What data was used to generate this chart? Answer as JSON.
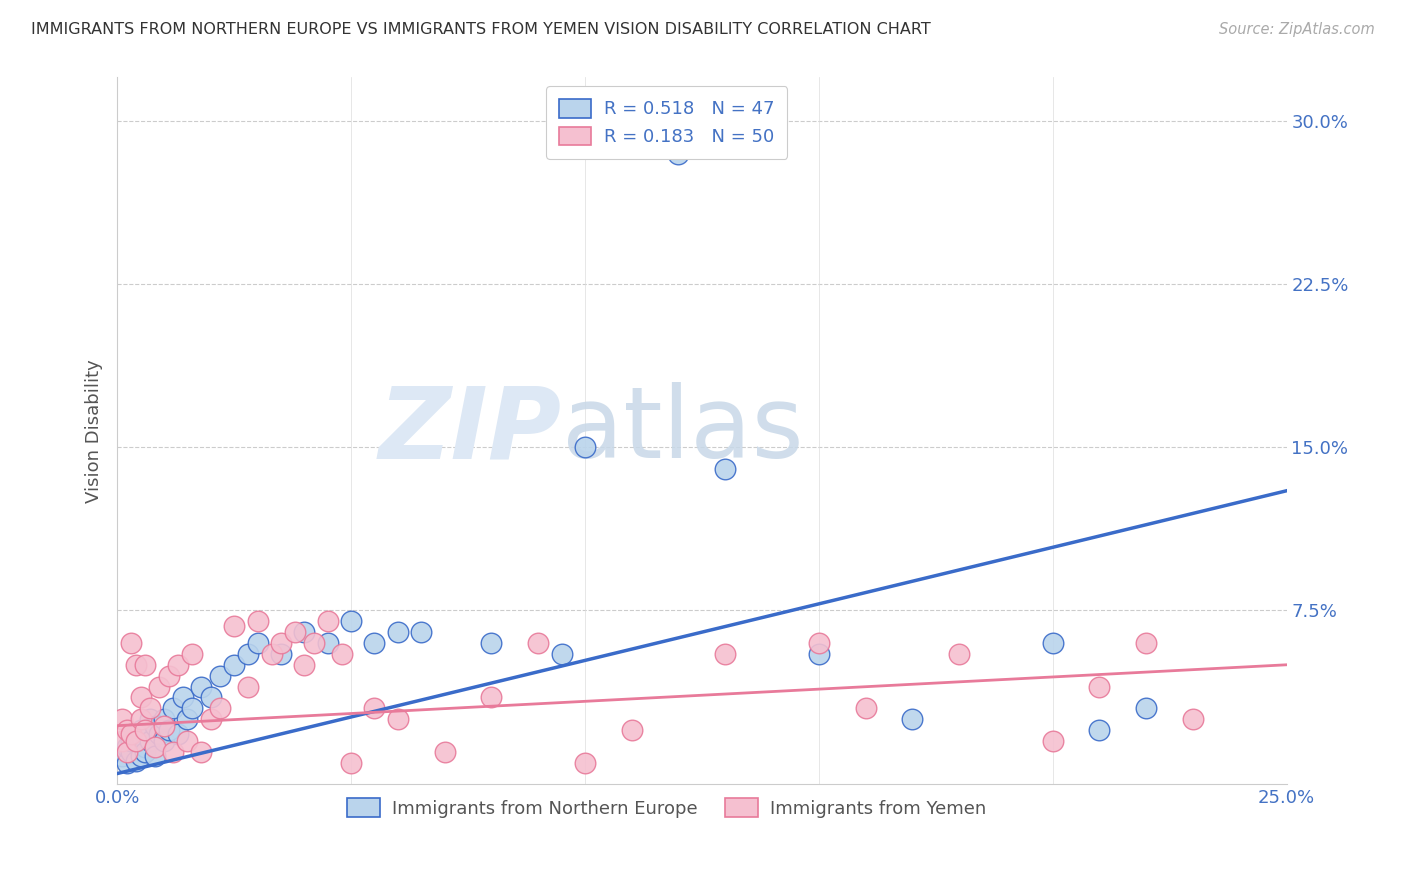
{
  "title": "IMMIGRANTS FROM NORTHERN EUROPE VS IMMIGRANTS FROM YEMEN VISION DISABILITY CORRELATION CHART",
  "source": "Source: ZipAtlas.com",
  "ylabel": "Vision Disability",
  "ytick_vals": [
    0.0,
    0.075,
    0.15,
    0.225,
    0.3
  ],
  "ytick_labels": [
    "",
    "7.5%",
    "15.0%",
    "22.5%",
    "30.0%"
  ],
  "xlim": [
    0.0,
    0.25
  ],
  "ylim": [
    -0.005,
    0.32
  ],
  "legend1_label": "R = 0.518   N = 47",
  "legend2_label": "R = 0.183   N = 50",
  "scatter1_color": "#bad4ec",
  "scatter2_color": "#f5c0d0",
  "line1_color": "#3a6bc9",
  "line2_color": "#e87a9a",
  "axis_color": "#4472c4",
  "watermark_color": "#dde8f5",
  "bottom_legend1": "Immigrants from Northern Europe",
  "bottom_legend2": "Immigrants from Yemen",
  "scatter1_x": [
    0.001,
    0.002,
    0.002,
    0.003,
    0.003,
    0.004,
    0.004,
    0.005,
    0.005,
    0.006,
    0.006,
    0.007,
    0.007,
    0.008,
    0.008,
    0.009,
    0.01,
    0.01,
    0.011,
    0.012,
    0.013,
    0.014,
    0.015,
    0.016,
    0.018,
    0.02,
    0.022,
    0.025,
    0.028,
    0.03,
    0.035,
    0.04,
    0.045,
    0.05,
    0.055,
    0.06,
    0.065,
    0.08,
    0.095,
    0.1,
    0.12,
    0.13,
    0.15,
    0.17,
    0.2,
    0.21,
    0.22
  ],
  "scatter1_y": [
    0.008,
    0.005,
    0.012,
    0.01,
    0.015,
    0.006,
    0.018,
    0.008,
    0.02,
    0.012,
    0.01,
    0.015,
    0.025,
    0.008,
    0.022,
    0.018,
    0.015,
    0.025,
    0.02,
    0.03,
    0.018,
    0.035,
    0.025,
    0.03,
    0.04,
    0.035,
    0.045,
    0.05,
    0.055,
    0.06,
    0.055,
    0.065,
    0.06,
    0.07,
    0.06,
    0.065,
    0.065,
    0.06,
    0.055,
    0.15,
    0.285,
    0.14,
    0.055,
    0.025,
    0.06,
    0.02,
    0.03
  ],
  "scatter2_x": [
    0.001,
    0.001,
    0.002,
    0.002,
    0.003,
    0.003,
    0.004,
    0.004,
    0.005,
    0.005,
    0.006,
    0.006,
    0.007,
    0.008,
    0.009,
    0.01,
    0.011,
    0.012,
    0.013,
    0.015,
    0.016,
    0.018,
    0.02,
    0.022,
    0.025,
    0.028,
    0.03,
    0.033,
    0.035,
    0.038,
    0.04,
    0.042,
    0.045,
    0.048,
    0.05,
    0.055,
    0.06,
    0.07,
    0.08,
    0.09,
    0.1,
    0.11,
    0.13,
    0.15,
    0.16,
    0.18,
    0.2,
    0.21,
    0.22,
    0.23
  ],
  "scatter2_y": [
    0.015,
    0.025,
    0.01,
    0.02,
    0.018,
    0.06,
    0.015,
    0.05,
    0.025,
    0.035,
    0.05,
    0.02,
    0.03,
    0.012,
    0.04,
    0.022,
    0.045,
    0.01,
    0.05,
    0.015,
    0.055,
    0.01,
    0.025,
    0.03,
    0.068,
    0.04,
    0.07,
    0.055,
    0.06,
    0.065,
    0.05,
    0.06,
    0.07,
    0.055,
    0.005,
    0.03,
    0.025,
    0.01,
    0.035,
    0.06,
    0.005,
    0.02,
    0.055,
    0.06,
    0.03,
    0.055,
    0.015,
    0.04,
    0.06,
    0.025
  ],
  "line1_x0": 0.0,
  "line1_y0": 0.0,
  "line1_x1": 0.25,
  "line1_y1": 0.13,
  "line2_x0": 0.0,
  "line2_y0": 0.022,
  "line2_x1": 0.25,
  "line2_y1": 0.05
}
